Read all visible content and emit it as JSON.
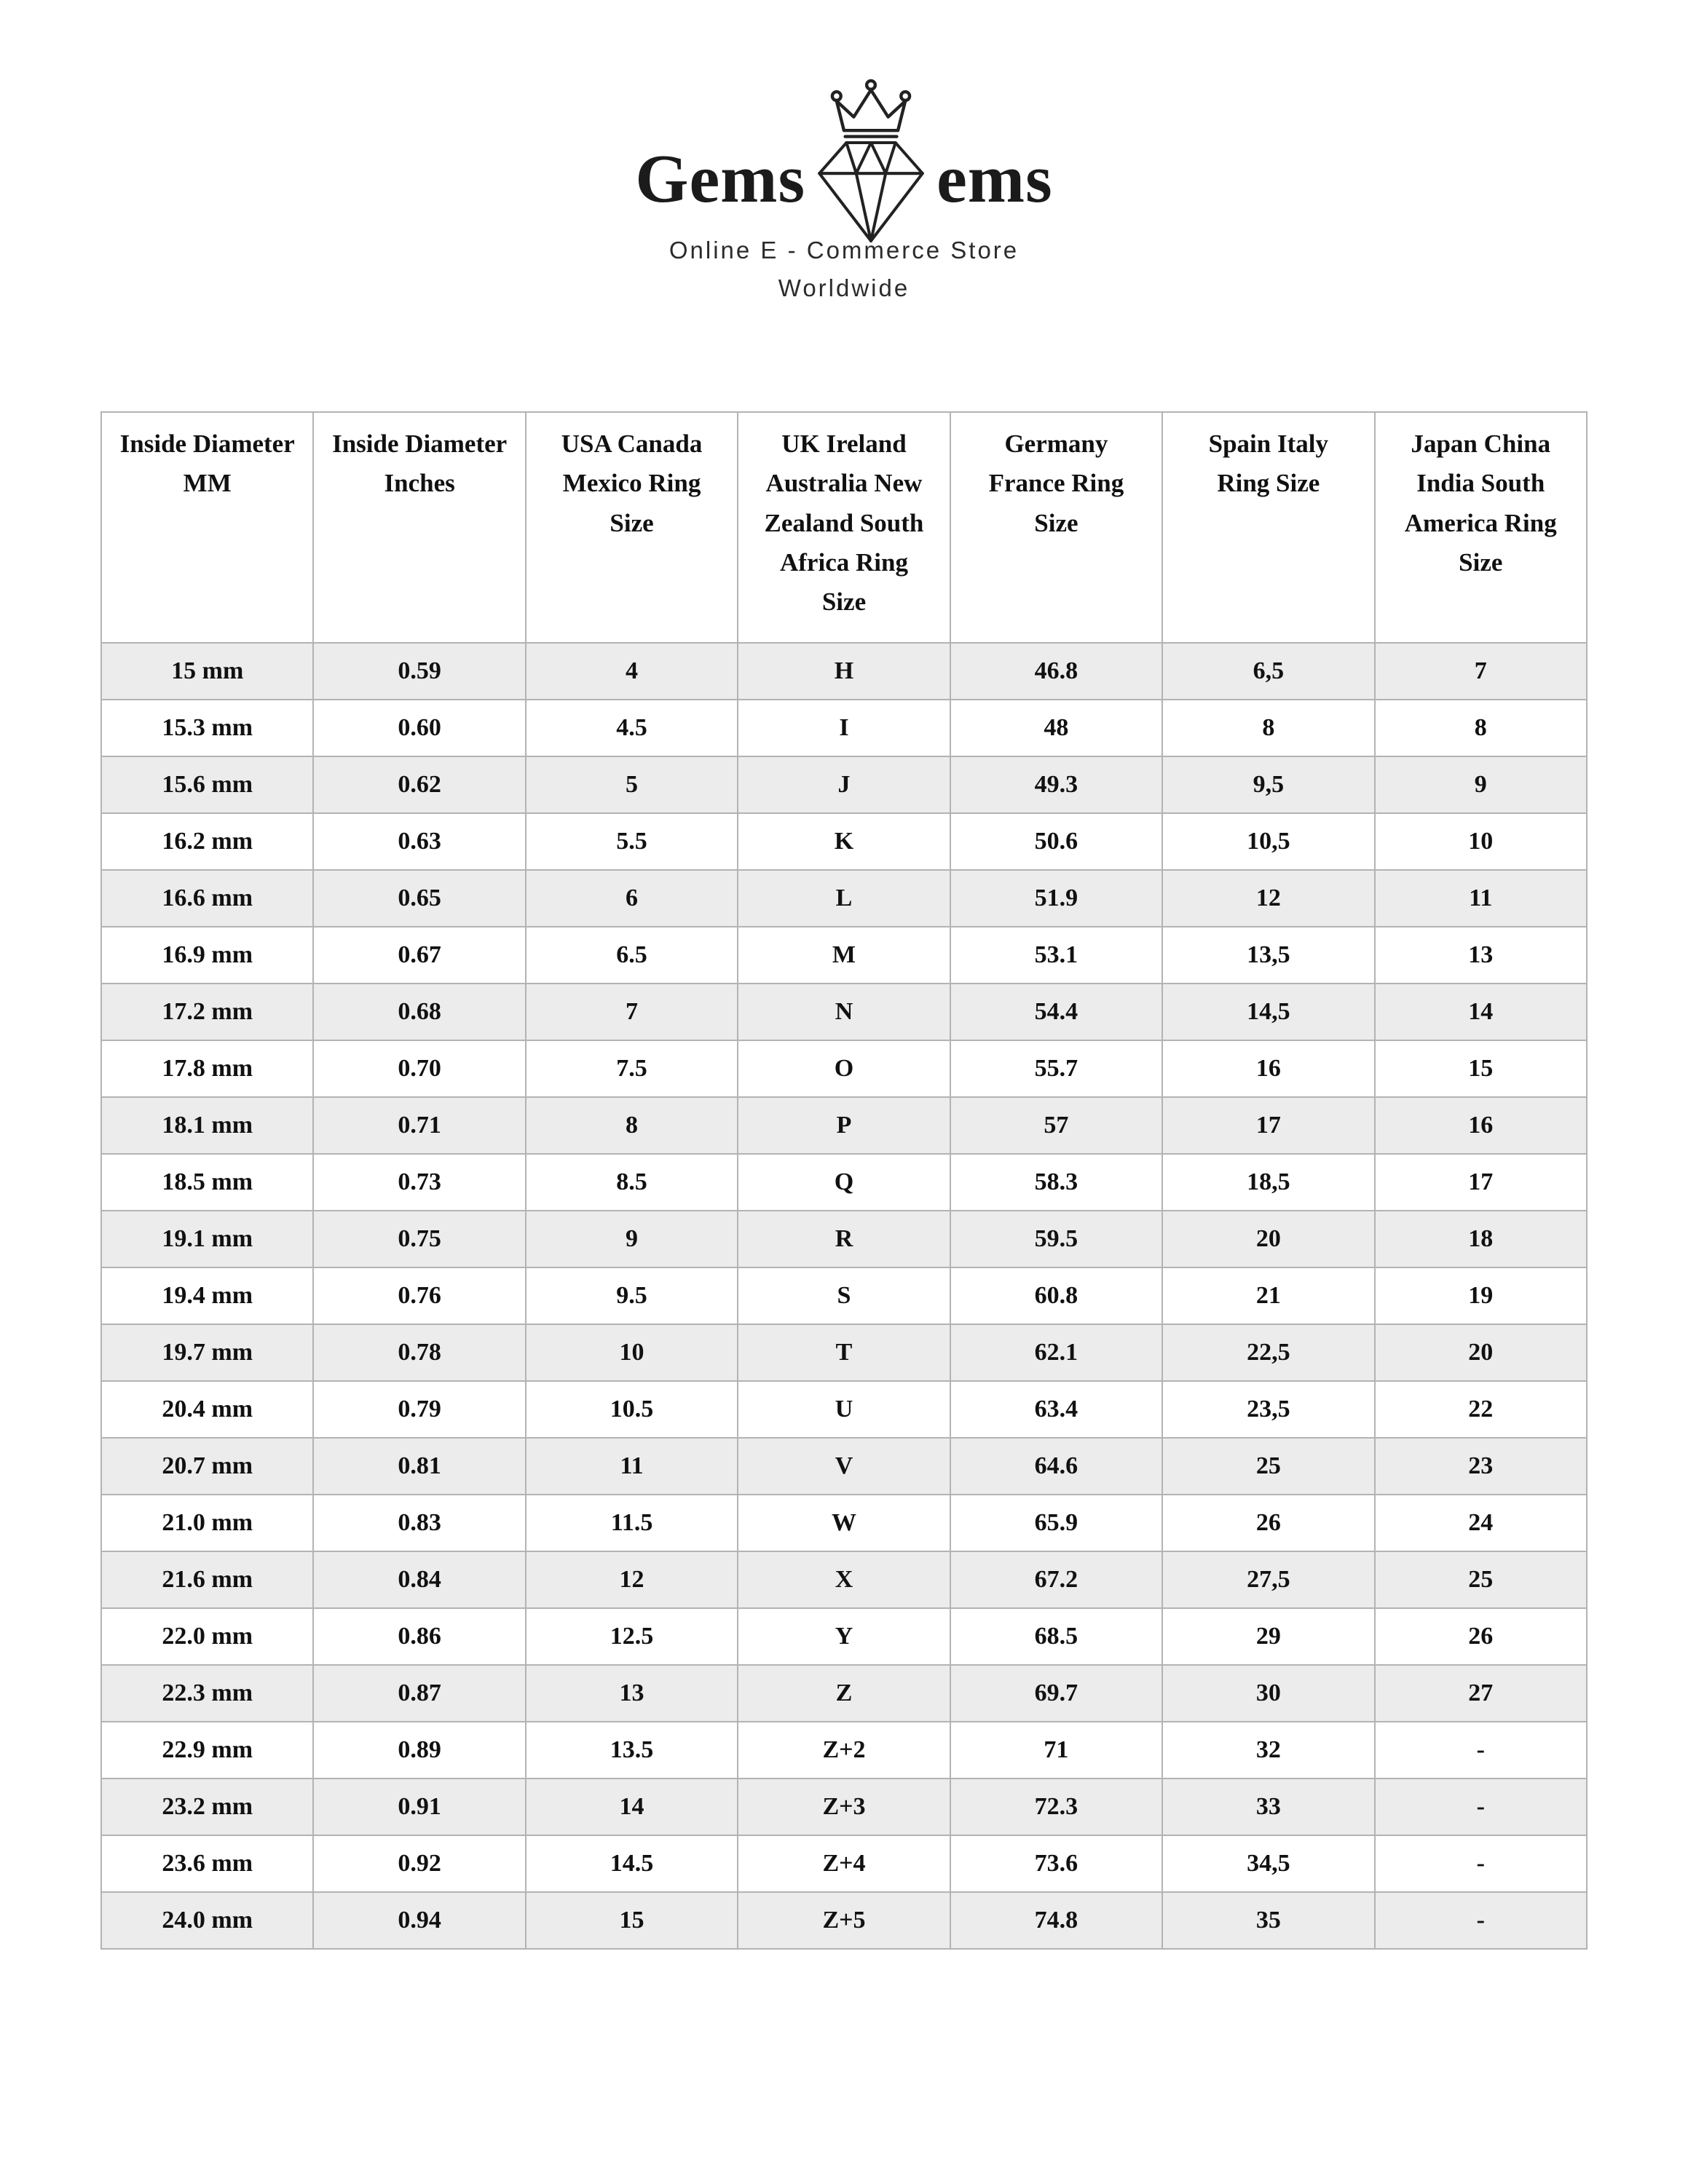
{
  "brand": {
    "name_left": "Gems",
    "name_right": "ems",
    "tagline": "Online E - Commerce Store",
    "subtitle": "Worldwide"
  },
  "table": {
    "headers": [
      "Inside Diameter MM",
      "Inside Diameter Inches",
      "USA Canada Mexico Ring Size",
      "UK Ireland Australia New Zealand South Africa Ring Size",
      "Germany France Ring Size",
      "Spain Italy Ring Size",
      "Japan China India South America Ring Size"
    ],
    "rows": [
      [
        "15 mm",
        "0.59",
        "4",
        "H",
        "46.8",
        "6,5",
        "7"
      ],
      [
        "15.3 mm",
        "0.60",
        "4.5",
        "I",
        "48",
        "8",
        "8"
      ],
      [
        "15.6 mm",
        "0.62",
        "5",
        "J",
        "49.3",
        "9,5",
        "9"
      ],
      [
        "16.2 mm",
        "0.63",
        "5.5",
        "K",
        "50.6",
        "10,5",
        "10"
      ],
      [
        "16.6 mm",
        "0.65",
        "6",
        "L",
        "51.9",
        "12",
        "11"
      ],
      [
        "16.9 mm",
        "0.67",
        "6.5",
        "M",
        "53.1",
        "13,5",
        "13"
      ],
      [
        "17.2 mm",
        "0.68",
        "7",
        "N",
        "54.4",
        "14,5",
        "14"
      ],
      [
        "17.8 mm",
        "0.70",
        "7.5",
        "O",
        "55.7",
        "16",
        "15"
      ],
      [
        "18.1 mm",
        "0.71",
        "8",
        "P",
        "57",
        "17",
        "16"
      ],
      [
        "18.5 mm",
        "0.73",
        "8.5",
        "Q",
        "58.3",
        "18,5",
        "17"
      ],
      [
        "19.1 mm",
        "0.75",
        "9",
        "R",
        "59.5",
        "20",
        "18"
      ],
      [
        "19.4 mm",
        "0.76",
        "9.5",
        "S",
        "60.8",
        "21",
        "19"
      ],
      [
        "19.7 mm",
        "0.78",
        "10",
        "T",
        "62.1",
        "22,5",
        "20"
      ],
      [
        "20.4 mm",
        "0.79",
        "10.5",
        "U",
        "63.4",
        "23,5",
        "22"
      ],
      [
        "20.7 mm",
        "0.81",
        "11",
        "V",
        "64.6",
        "25",
        "23"
      ],
      [
        "21.0 mm",
        "0.83",
        "11.5",
        "W",
        "65.9",
        "26",
        "24"
      ],
      [
        "21.6 mm",
        "0.84",
        "12",
        "X",
        "67.2",
        "27,5",
        "25"
      ],
      [
        "22.0 mm",
        "0.86",
        "12.5",
        "Y",
        "68.5",
        "29",
        "26"
      ],
      [
        "22.3 mm",
        "0.87",
        "13",
        "Z",
        "69.7",
        "30",
        "27"
      ],
      [
        "22.9 mm",
        "0.89",
        "13.5",
        "Z+2",
        "71",
        "32",
        "-"
      ],
      [
        "23.2 mm",
        "0.91",
        "14",
        "Z+3",
        "72.3",
        "33",
        "-"
      ],
      [
        "23.6 mm",
        "0.92",
        "14.5",
        "Z+4",
        "73.6",
        "34,5",
        "-"
      ],
      [
        "24.0 mm",
        "0.94",
        "15",
        "Z+5",
        "74.8",
        "35",
        "-"
      ]
    ]
  },
  "colors": {
    "row_shade": "#ececec",
    "table_border": "#b3b3b3",
    "text": "#111111"
  }
}
